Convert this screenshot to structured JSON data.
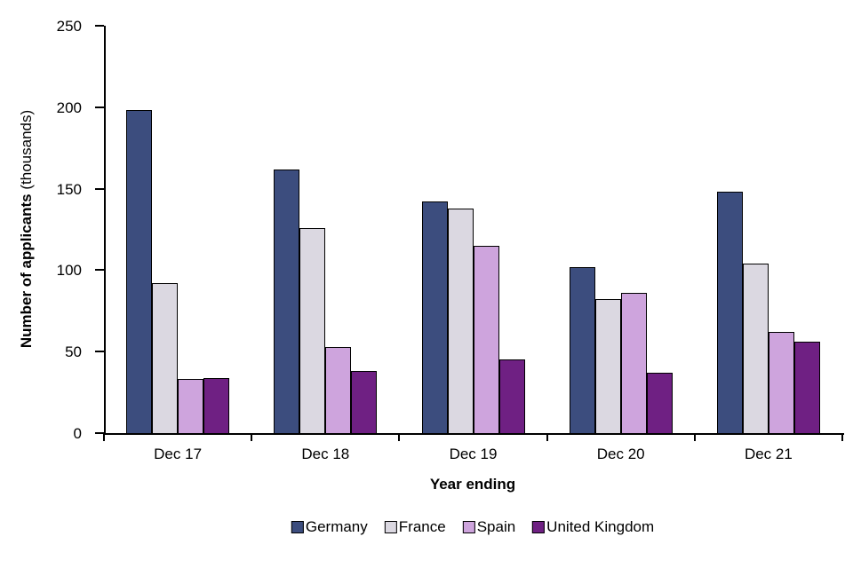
{
  "chart_data": {
    "type": "bar",
    "title": "",
    "xlabel": "Year ending",
    "ylabel": "Number of applicants (thousands)",
    "ylabel_bold": "Number of applicants",
    "ylabel_note": "(thousands)",
    "categories": [
      "Dec 17",
      "Dec 18",
      "Dec 19",
      "Dec 20",
      "Dec 21"
    ],
    "series": [
      {
        "name": "Germany",
        "color": "#3C4D7E",
        "values": [
          198,
          162,
          142,
          102,
          148
        ]
      },
      {
        "name": "France",
        "color": "#DBD8E1",
        "values": [
          92,
          126,
          138,
          82,
          104
        ]
      },
      {
        "name": "Spain",
        "color": "#CEA4DD",
        "values": [
          33,
          53,
          115,
          86,
          62
        ]
      },
      {
        "name": "United Kingdom",
        "color": "#6F2083",
        "values": [
          34,
          38,
          45,
          37,
          56
        ]
      }
    ],
    "ylim": [
      0,
      250
    ],
    "yticks": [
      0,
      50,
      100,
      150,
      200,
      250
    ],
    "grid": false,
    "legend_position": "bottom",
    "bar_border_color": "#000000",
    "axis_color": "#000000",
    "background_color": "#FFFFFF"
  }
}
